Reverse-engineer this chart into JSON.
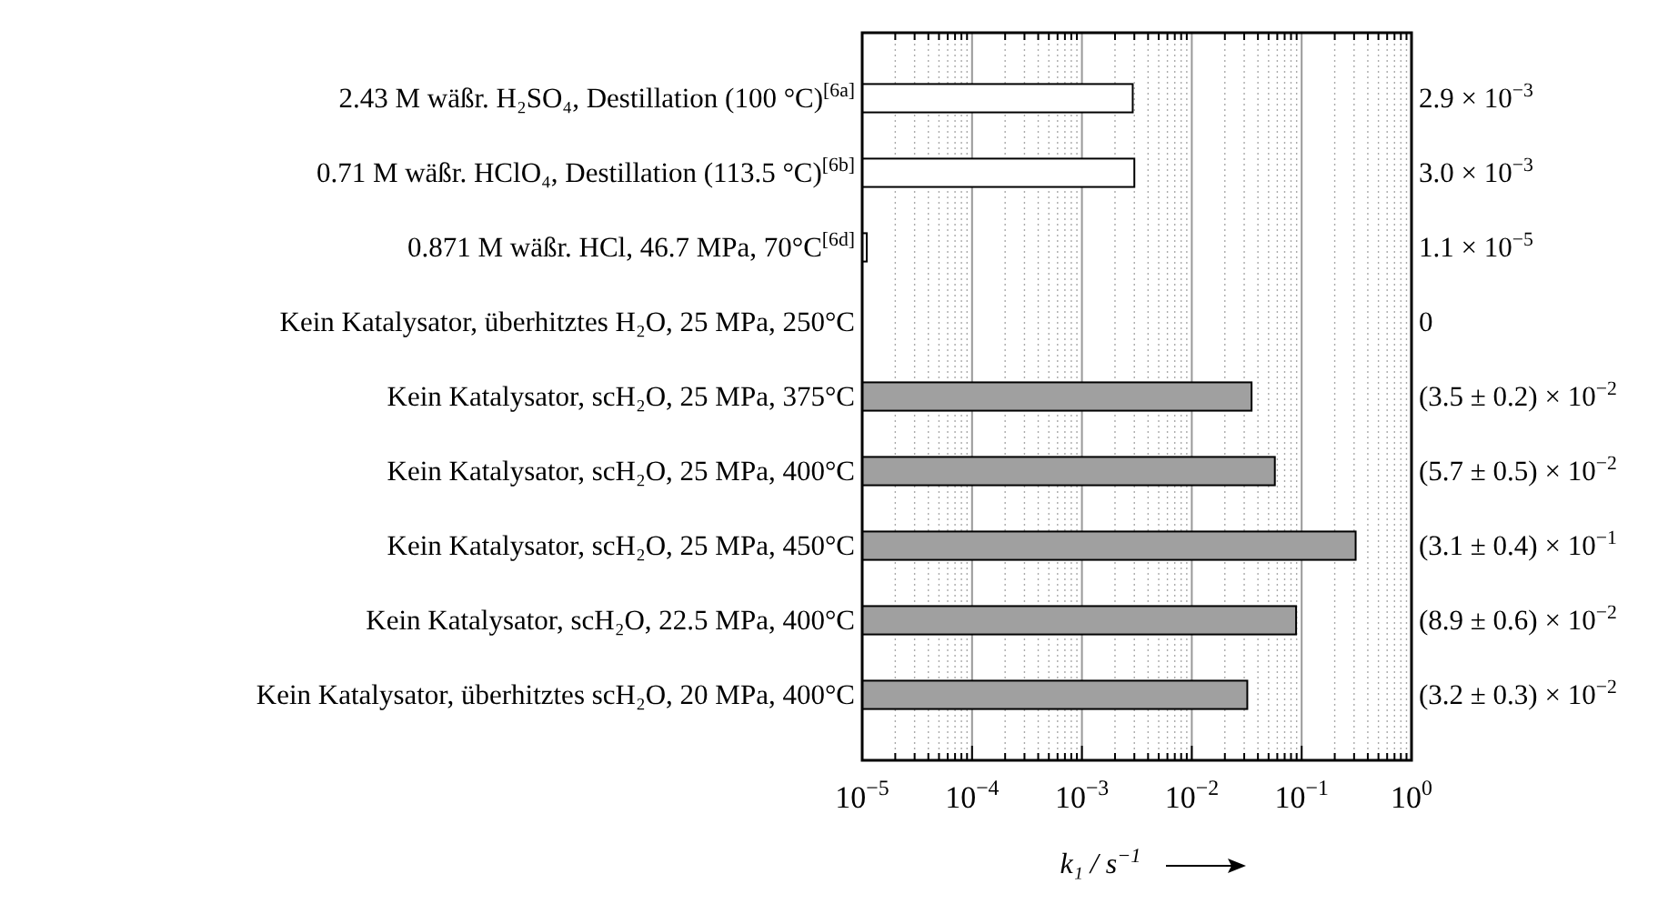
{
  "chart_data": {
    "type": "bar",
    "orientation": "horizontal",
    "log": "x",
    "grid": "x",
    "categories": [
      "2.43 M wäßr. H₂SO₄, Destillation (100 °C)$^{[6a]}$",
      "0.71 M wäßr. HClO₄, Destillation (113.5 °C)$^{[6b]}$",
      "0.871 M wäßr. HCl, 46.7 MPa, 70°C$^{[6d]}$",
      "Kein Katalysator, überhitztes H₂O, 25 MPa, 250°C",
      "Kein Katalysator, scH₂O, 25 MPa, 375°C",
      "Kein Katalysator, scH₂O, 25 MPa, 400°C",
      "Kein Katalysator, scH₂O, 25 MPa, 450°C",
      "Kein Katalysator, scH₂O, 22.5 MPa, 400°C",
      "Kein Katalysator, überhitztes scH₂O, 20 MPa, 400°C"
    ],
    "values": [
      0.0029,
      0.003,
      1.1e-05,
      null,
      0.035,
      0.057,
      0.31,
      0.089,
      0.032
    ],
    "colors": [
      "#ffffff",
      "#ffffff",
      "#ffffff",
      null,
      "#a0a0a0",
      "#a0a0a0",
      "#a0a0a0",
      "#a0a0a0",
      "#a0a0a0"
    ],
    "annotations": [
      "2.9 × 10$^{−3}$",
      "3.0 × 10$^{−3}$",
      "1.1 × 10$^{−5}$",
      "0",
      "(3.5 ± 0.2) × 10$^{−2}$",
      "(5.7 ± 0.5) × 10$^{−2}$",
      "(3.1 ± 0.4) × 10$^{−1}$",
      "(8.9 ± 0.6) × 10$^{−2}$",
      "(3.2 ± 0.3) × 10$^{−2}$"
    ],
    "xlim": [
      1e-05,
      1
    ],
    "xticks": [
      {
        "value": 1e-05,
        "label": "10$^{−5}$"
      },
      {
        "value": 0.0001,
        "label": "10$^{−4}$"
      },
      {
        "value": 0.001,
        "label": "10$^{−3}$"
      },
      {
        "value": 0.01,
        "label": "10$^{−2}$"
      },
      {
        "value": 0.1,
        "label": "10$^{−1}$"
      },
      {
        "value": 1,
        "label": "10$^{0}$"
      }
    ],
    "xlabel": "k₁ / s$^{−1}$"
  }
}
